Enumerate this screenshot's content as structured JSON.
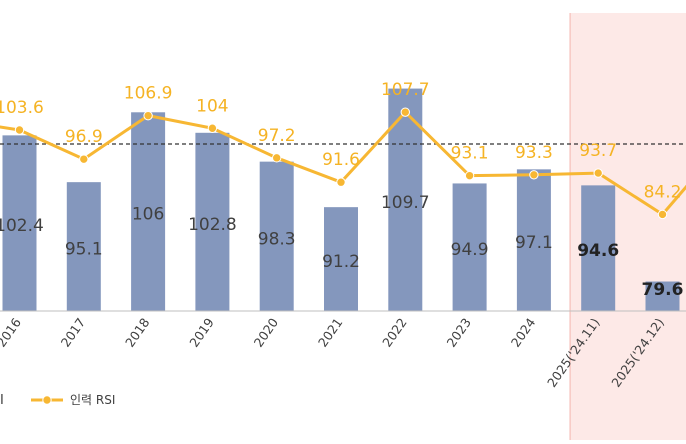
{
  "chart_data": {
    "type": "bar",
    "categories": [
      "2016",
      "2017",
      "2018",
      "2019",
      "2020",
      "2021",
      "2022",
      "2023",
      "2024",
      "2025('24.11)",
      "2025('24.12)"
    ],
    "series": [
      {
        "name": "",
        "kind": "bar",
        "values": [
          102.4,
          95.1,
          106,
          102.8,
          98.3,
          91.2,
          109.7,
          94.9,
          97.1,
          94.6,
          79.6
        ],
        "labels": [
          "102.4",
          "95.1",
          "106",
          "102.8",
          "98.3",
          "91.2",
          "109.7",
          "94.9",
          "97.1",
          "94.6",
          "79.6"
        ],
        "color": "#8497bd"
      },
      {
        "name": "인력 RSI",
        "kind": "line",
        "values": [
          103.6,
          96.9,
          106.9,
          104,
          97.2,
          91.6,
          107.7,
          93.1,
          93.3,
          93.7,
          84.2
        ],
        "labels": [
          "103.6",
          "96.9",
          "106.9",
          "104",
          "97.2",
          "91.6",
          "107.7",
          "93.1",
          "93.3",
          "93.7",
          "84.2"
        ],
        "color": "#f7b733"
      }
    ],
    "reference_line": 100,
    "highlight_categories": [
      "2025('24.11)",
      "2025('24.12)"
    ],
    "legend": {
      "position": "bottom-left",
      "bar_fragment": "I",
      "line_label": "인력 RSI"
    },
    "grid": false,
    "colors": {
      "bar": "#8497bd",
      "line": "#f7b733",
      "line_label": "#f5b324",
      "bar_label": "#404040",
      "bar_label_bold": "#222222",
      "highlight_fill": "#fde9e7",
      "highlight_border": "#f4b4ad",
      "axis": "#bfbfbf",
      "reference": "#333333"
    }
  }
}
